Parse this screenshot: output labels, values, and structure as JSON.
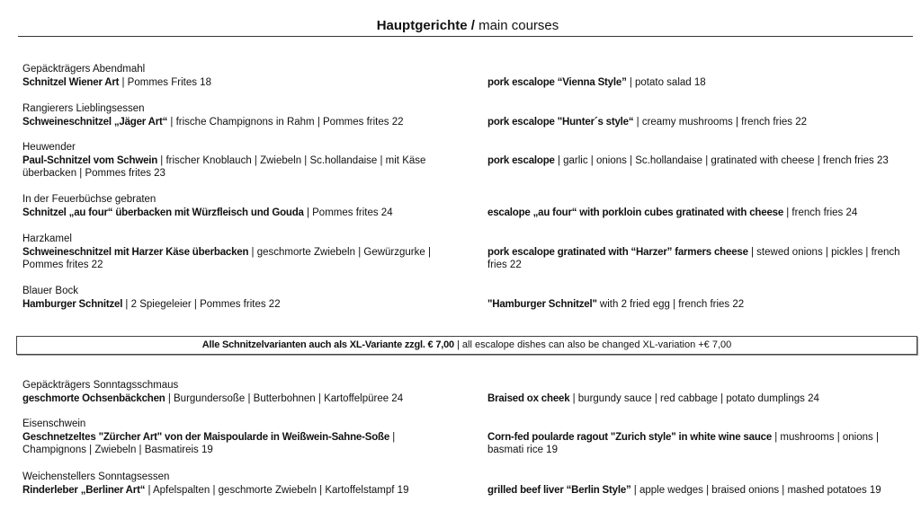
{
  "header": {
    "title_de": "Hauptgerichte /",
    "title_en": " main courses"
  },
  "items": [
    {
      "name": "Gepäckträgers Abendmahl",
      "de_bold": "Schnitzel Wiener Art",
      "de_rest": " | Pommes Frites  18",
      "en_bold": "pork escalope “Vienna Style”",
      "en_rest": " | potato salad  18"
    },
    {
      "name": "Rangierers Lieblingsessen",
      "de_bold": "Schweineschnitzel „Jäger Art“",
      "de_rest": " | frische Champignons in Rahm | Pommes frites  22",
      "en_bold": "pork escalope \"Hunter´s style“",
      "en_rest": " | creamy mushrooms | french fries  22"
    },
    {
      "name": "Heuwender",
      "de_bold": "Paul-Schnitzel vom Schwein",
      "de_rest": " | frischer Knoblauch | Zwiebeln | Sc.hollandaise | mit Käse überbacken | Pommes frites 23",
      "en_bold": "pork escalope",
      "en_rest": " | garlic | onions | Sc.hollandaise | gratinated with cheese | french fries 23"
    },
    {
      "name": "In der Feuerbüchse gebraten",
      "de_bold": "Schnitzel „au four“ überbacken mit Würzfleisch und Gouda",
      "de_rest": " | Pommes frites 24",
      "en_bold": "escalope „au four“ with porkloin cubes gratinated with cheese",
      "en_rest": " | french fries 24"
    },
    {
      "name": "Harzkamel",
      "de_bold": "Schweineschnitzel mit Harzer Käse überbacken",
      "de_rest": " | geschmorte Zwiebeln | Gewürzgurke | Pommes frites  22",
      "en_bold": "pork escalope gratinated with “Harzer” farmers cheese",
      "en_rest": " | stewed onions | pickles | french fries  22"
    },
    {
      "name": "Blauer Bock",
      "de_bold": "Hamburger Schnitzel",
      "de_rest": " | 2 Spiegeleier | Pommes frites  22",
      "en_bold": "\"Hamburger Schnitzel\"",
      "en_rest": " with 2 fried egg | french fries  22"
    },
    {
      "name": "Gepäckträgers Sonntagsschmaus",
      "de_bold": "geschmorte Ochsenbäckchen",
      "de_rest": " | Burgundersoße | Butterbohnen | Kartoffelpüree  24",
      "en_bold": "Braised ox cheek",
      "en_rest": " | burgundy sauce | red cabbage | potato dumplings  24"
    },
    {
      "name": "Eisenschwein",
      "de_bold": "Geschnetzeltes \"Zürcher Art\" von der Maispoularde in Weißwein-Sahne-Soße",
      "de_rest": " | Champignons | Zwiebeln | Basmatireis  19",
      "en_bold": "Corn-fed poularde ragout \"Zurich style\" in white wine sauce",
      "en_rest": " | mushrooms | onions | basmati rice  19"
    },
    {
      "name": "Weichenstellers Sonntagsessen",
      "de_bold": "Rinderleber „Berliner Art“",
      "de_rest": " | Apfelspalten | geschmorte Zwiebeln | Kartoffelstampf 19",
      "en_bold": "grilled beef liver “Berlin Style”",
      "en_rest": " | apple wedges | braised onions | mashed potatoes  19"
    }
  ],
  "banner": {
    "bold": "Alle Schnitzelvarianten auch als XL-Variante zzgl. € 7,00",
    "rest": " | all escalope dishes can also be changed XL-variation +€ 7,00"
  }
}
